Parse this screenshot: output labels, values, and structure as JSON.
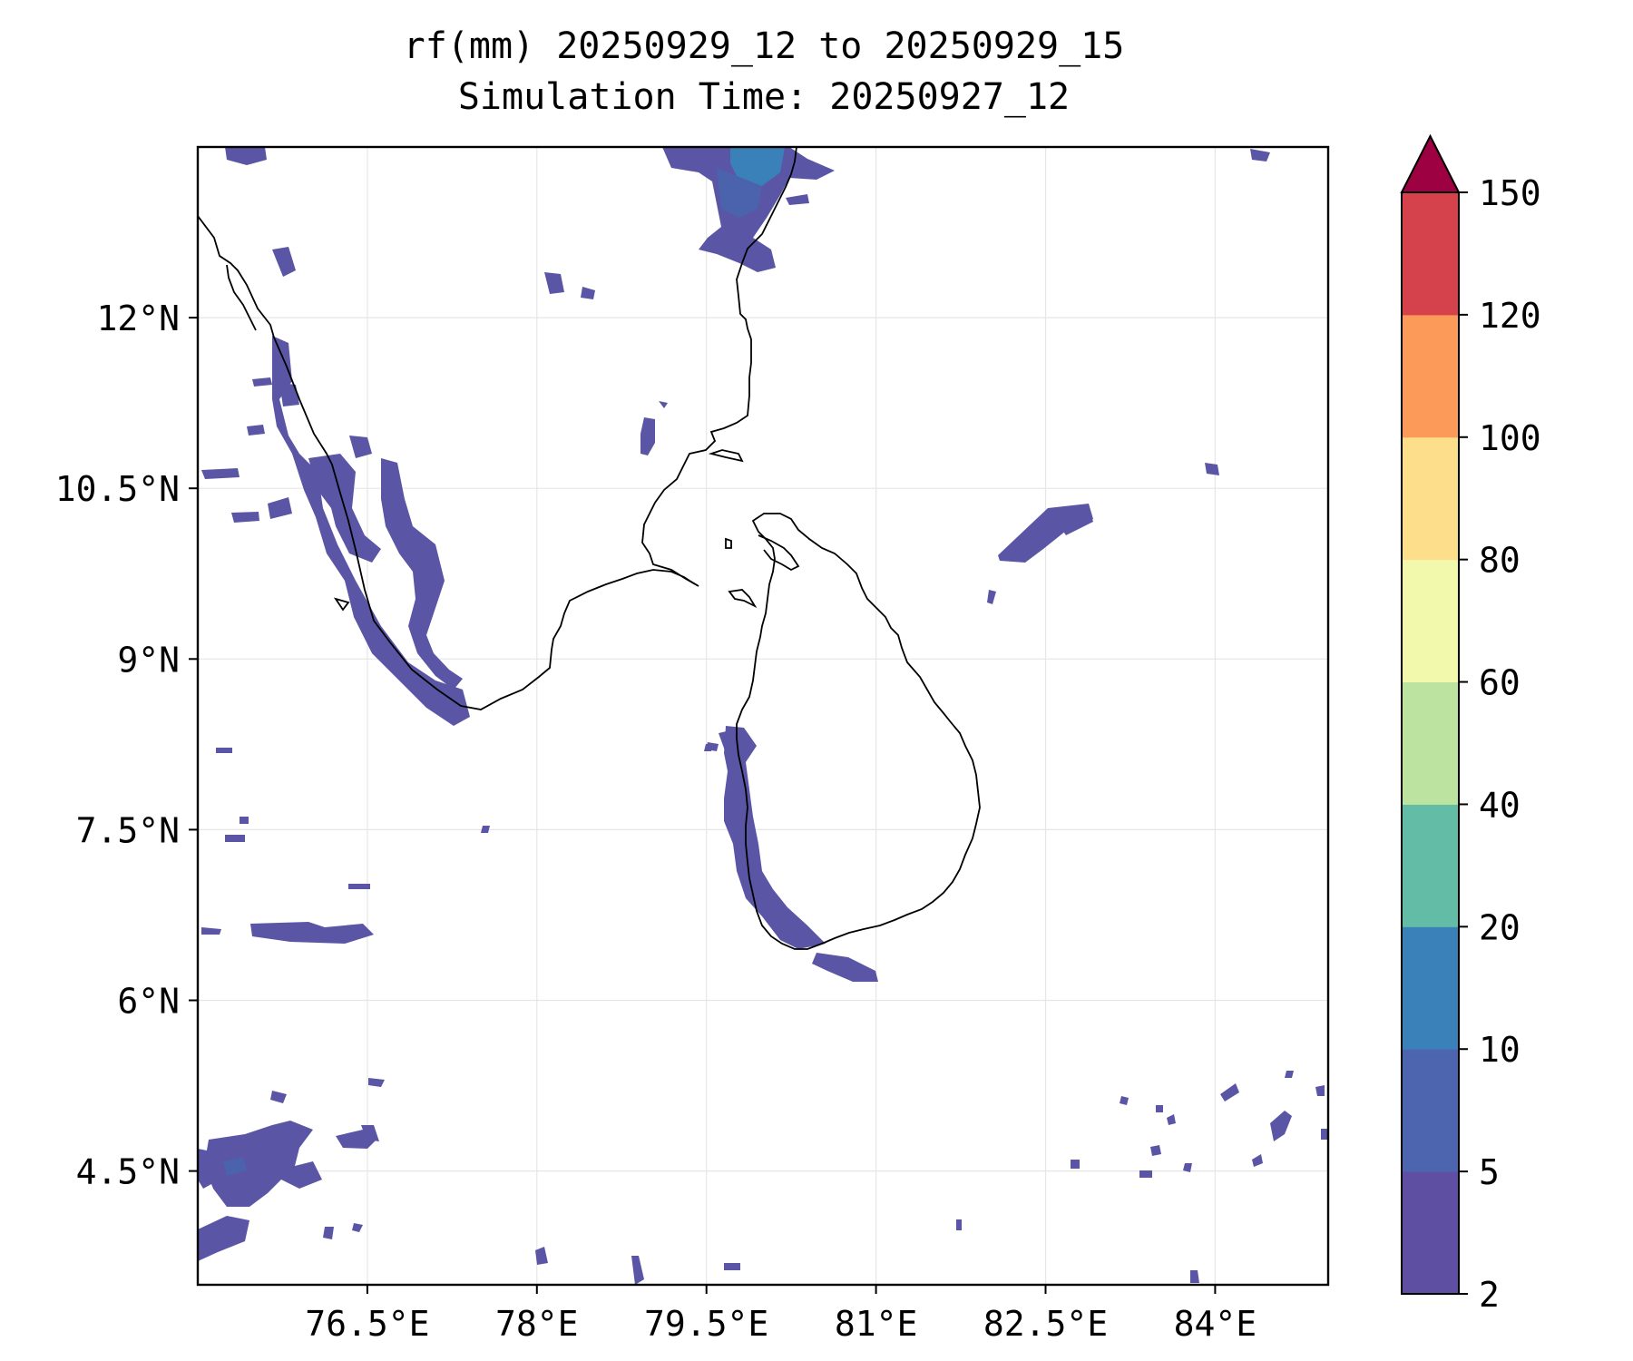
{
  "title": {
    "line1": "rf(mm) 20250929_12 to 20250929_15",
    "line2": "Simulation Time: 20250927_12"
  },
  "map": {
    "lon_range": [
      75,
      85
    ],
    "lat_range": [
      3.5,
      13.5
    ],
    "x_ticks": [
      {
        "value": 76.5,
        "label": "76.5°E"
      },
      {
        "value": 78,
        "label": "78°E"
      },
      {
        "value": 79.5,
        "label": "79.5°E"
      },
      {
        "value": 81,
        "label": "81°E"
      },
      {
        "value": 82.5,
        "label": "82.5°E"
      },
      {
        "value": 84,
        "label": "84°E"
      }
    ],
    "y_ticks": [
      {
        "value": 12,
        "label": "12°N"
      },
      {
        "value": 10.5,
        "label": "10.5°N"
      },
      {
        "value": 9,
        "label": "9°N"
      },
      {
        "value": 7.5,
        "label": "7.5°N"
      },
      {
        "value": 6,
        "label": "6°N"
      },
      {
        "value": 4.5,
        "label": "4.5°N"
      }
    ],
    "grid": true
  },
  "colorbar": {
    "extend": "max",
    "extend_color": "#9e0142",
    "levels": [
      {
        "from": 2,
        "to": 5,
        "color": "#5e4fa2"
      },
      {
        "from": 5,
        "to": 10,
        "color": "#4d64ae"
      },
      {
        "from": 10,
        "to": 20,
        "color": "#3a81b9"
      },
      {
        "from": 20,
        "to": 40,
        "color": "#63bca6"
      },
      {
        "from": 40,
        "to": 60,
        "color": "#bde3a0"
      },
      {
        "from": 60,
        "to": 80,
        "color": "#f3f9ac"
      },
      {
        "from": 80,
        "to": 100,
        "color": "#fddf8b"
      },
      {
        "from": 100,
        "to": 120,
        "color": "#fb9a59"
      },
      {
        "from": 120,
        "to": 150,
        "color": "#d6424b"
      }
    ],
    "tick_labels": [
      "2",
      "5",
      "10",
      "20",
      "40",
      "60",
      "80",
      "100",
      "120",
      "150"
    ]
  },
  "rain_color": "#5a55a5",
  "rain_color_mid": "#4b63ad",
  "rain_color_heavy": "#3a81b9"
}
